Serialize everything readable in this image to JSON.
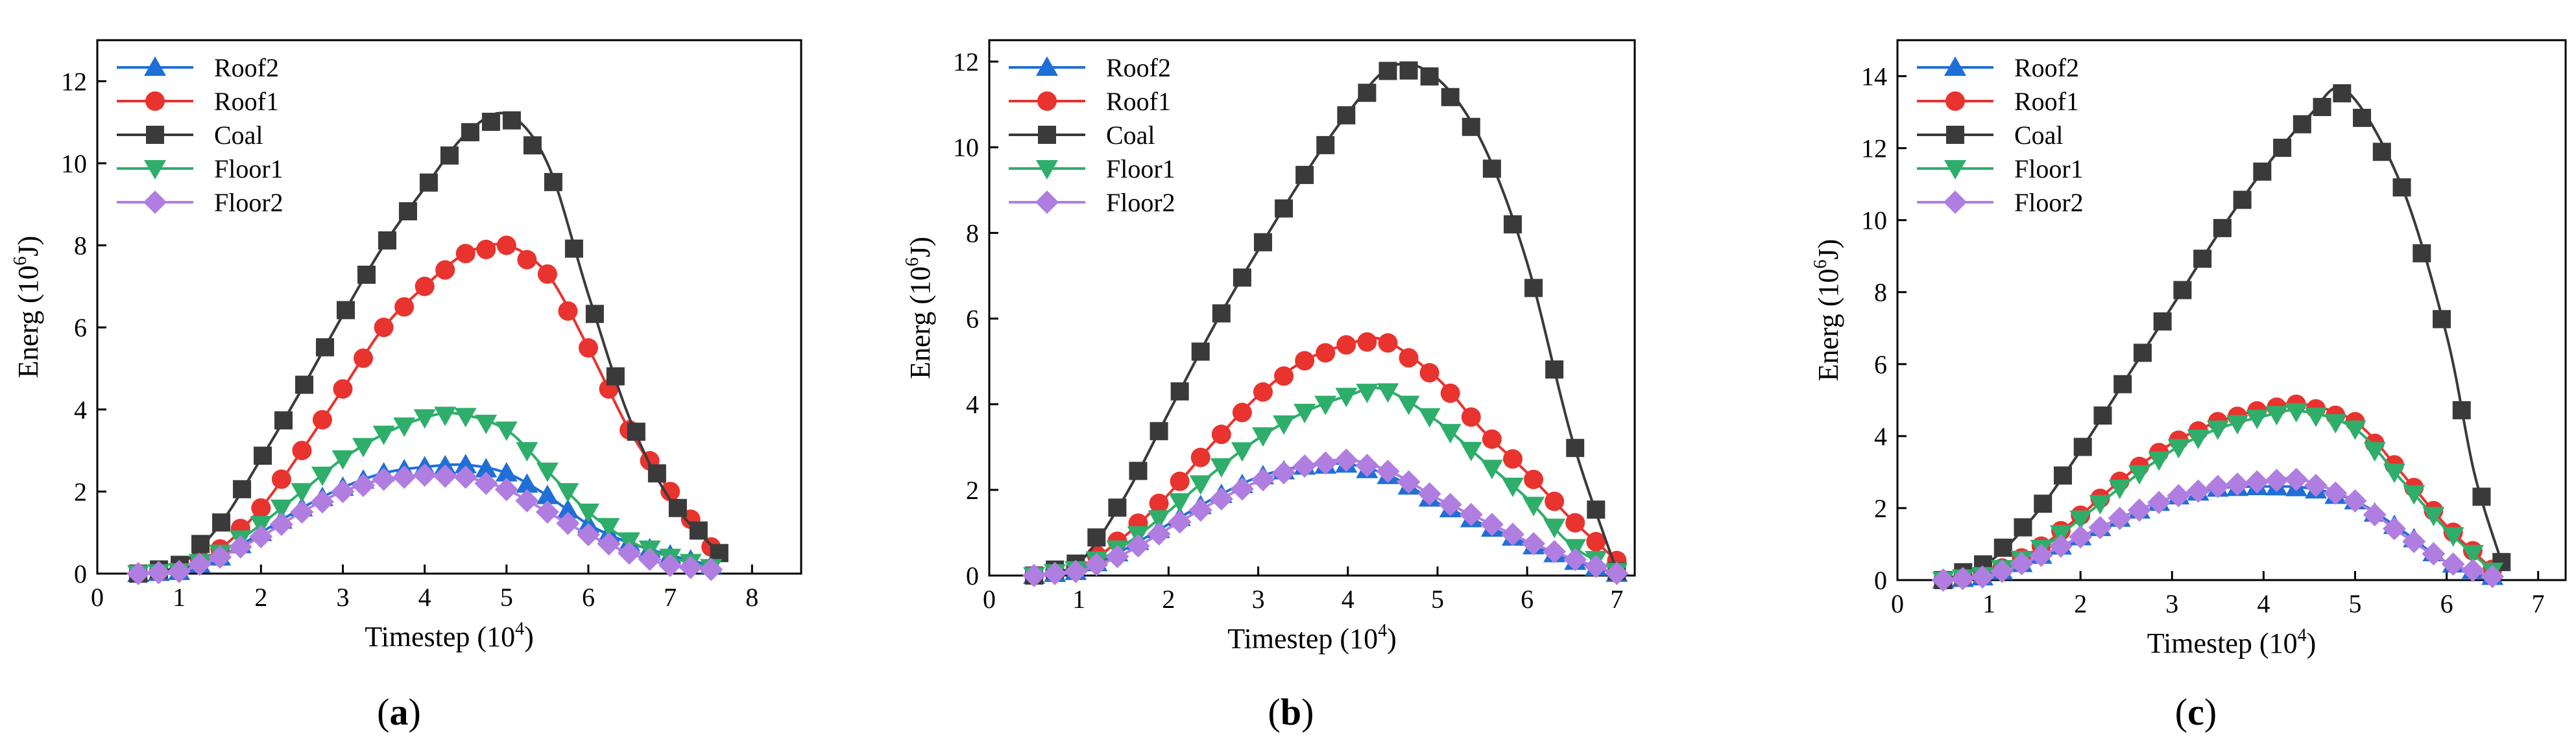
{
  "figure": {
    "panel_tags": [
      "a",
      "b",
      "c"
    ]
  },
  "chart_data": [
    {
      "type": "line",
      "panel": "a",
      "xlabel_main": "Timestep (10",
      "xlabel_exp": "4",
      "xlabel_tail": ")",
      "ylabel_main": "Energ (10",
      "ylabel_exp": "6",
      "ylabel_tail": "J)",
      "xlim": [
        0,
        8.6
      ],
      "ylim": [
        0,
        13
      ],
      "xticks": [
        0,
        1,
        2,
        3,
        4,
        5,
        6,
        7,
        8
      ],
      "yticks": [
        0,
        2,
        4,
        6,
        8,
        10,
        12
      ],
      "legend_position": "top-left",
      "series": [
        {
          "name": "Roof2",
          "color": "#1f6fd6",
          "marker": "triangle-up",
          "points": [
            [
              0.5,
              0
            ],
            [
              1,
              0.05
            ],
            [
              1.5,
              0.4
            ],
            [
              2,
              1.0
            ],
            [
              2.5,
              1.6
            ],
            [
              3,
              2.1
            ],
            [
              3.5,
              2.45
            ],
            [
              4,
              2.6
            ],
            [
              4.5,
              2.65
            ],
            [
              5,
              2.45
            ],
            [
              5.5,
              1.9
            ],
            [
              6,
              1.2
            ],
            [
              6.5,
              0.75
            ],
            [
              7,
              0.45
            ],
            [
              7.5,
              0.2
            ]
          ]
        },
        {
          "name": "Roof1",
          "color": "#e8332e",
          "marker": "circle",
          "points": [
            [
              0.5,
              0
            ],
            [
              1,
              0.1
            ],
            [
              1.5,
              0.6
            ],
            [
              2,
              1.6
            ],
            [
              2.5,
              3.0
            ],
            [
              3,
              4.5
            ],
            [
              3.5,
              6.0
            ],
            [
              4,
              7.0
            ],
            [
              4.5,
              7.8
            ],
            [
              5,
              8.0
            ],
            [
              5.5,
              7.3
            ],
            [
              6,
              5.5
            ],
            [
              6.5,
              3.5
            ],
            [
              7,
              2.0
            ],
            [
              7.5,
              0.65
            ]
          ]
        },
        {
          "name": "Coal",
          "color": "#3a3a3a",
          "marker": "square",
          "points": [
            [
              0.5,
              0
            ],
            [
              1,
              0.2
            ],
            [
              1.5,
              1.2
            ],
            [
              2,
              2.8
            ],
            [
              2.5,
              4.5
            ],
            [
              3,
              6.3
            ],
            [
              3.5,
              8.0
            ],
            [
              4,
              9.4
            ],
            [
              4.5,
              10.7
            ],
            [
              5,
              11.2
            ],
            [
              5.5,
              10.0
            ],
            [
              6,
              6.8
            ],
            [
              6.5,
              3.8
            ],
            [
              7,
              1.8
            ],
            [
              7.6,
              0.5
            ]
          ]
        },
        {
          "name": "Floor1",
          "color": "#2eae6a",
          "marker": "triangle-down",
          "points": [
            [
              0.5,
              0
            ],
            [
              1,
              0.05
            ],
            [
              1.5,
              0.5
            ],
            [
              2,
              1.2
            ],
            [
              2.5,
              2.0
            ],
            [
              3,
              2.8
            ],
            [
              3.5,
              3.4
            ],
            [
              4,
              3.8
            ],
            [
              4.4,
              3.9
            ],
            [
              5,
              3.5
            ],
            [
              5.5,
              2.5
            ],
            [
              6,
              1.5
            ],
            [
              6.5,
              0.8
            ],
            [
              7,
              0.4
            ],
            [
              7.5,
              0.15
            ]
          ]
        },
        {
          "name": "Floor2",
          "color": "#b07ee0",
          "marker": "diamond",
          "points": [
            [
              0.5,
              0
            ],
            [
              1,
              0.05
            ],
            [
              1.5,
              0.4
            ],
            [
              2,
              0.9
            ],
            [
              2.5,
              1.5
            ],
            [
              3,
              2.0
            ],
            [
              3.5,
              2.3
            ],
            [
              4,
              2.4
            ],
            [
              4.5,
              2.35
            ],
            [
              5,
              2.05
            ],
            [
              5.5,
              1.5
            ],
            [
              6,
              0.95
            ],
            [
              6.5,
              0.5
            ],
            [
              7,
              0.2
            ],
            [
              7.5,
              0.1
            ]
          ]
        }
      ]
    },
    {
      "type": "line",
      "panel": "b",
      "xlabel_main": "Timestep (10",
      "xlabel_exp": "4",
      "xlabel_tail": ")",
      "ylabel_main": "Energ (10",
      "ylabel_exp": "6",
      "ylabel_tail": "J)",
      "xlim": [
        0,
        7.2
      ],
      "ylim": [
        0,
        12.5
      ],
      "xticks": [
        0,
        1,
        2,
        3,
        4,
        5,
        6,
        7
      ],
      "yticks": [
        0,
        2,
        4,
        6,
        8,
        10,
        12
      ],
      "legend_position": "top-left",
      "series": [
        {
          "name": "Roof2",
          "color": "#1f6fd6",
          "marker": "triangle-up",
          "points": [
            [
              0.5,
              0
            ],
            [
              1,
              0.1
            ],
            [
              1.5,
              0.6
            ],
            [
              2,
              1.2
            ],
            [
              2.5,
              1.8
            ],
            [
              3,
              2.3
            ],
            [
              3.5,
              2.55
            ],
            [
              4,
              2.6
            ],
            [
              4.5,
              2.3
            ],
            [
              5,
              1.7
            ],
            [
              5.5,
              1.2
            ],
            [
              6,
              0.75
            ],
            [
              6.5,
              0.35
            ],
            [
              7,
              0.05
            ]
          ]
        },
        {
          "name": "Roof1",
          "color": "#e8332e",
          "marker": "circle",
          "points": [
            [
              0.5,
              0
            ],
            [
              1,
              0.2
            ],
            [
              1.5,
              0.9
            ],
            [
              2,
              1.9
            ],
            [
              2.5,
              3.1
            ],
            [
              3,
              4.2
            ],
            [
              3.5,
              5.0
            ],
            [
              4,
              5.4
            ],
            [
              4.4,
              5.5
            ],
            [
              5,
              4.6
            ],
            [
              5.5,
              3.4
            ],
            [
              6,
              2.4
            ],
            [
              6.5,
              1.3
            ],
            [
              7,
              0.35
            ]
          ]
        },
        {
          "name": "Coal",
          "color": "#3a3a3a",
          "marker": "square",
          "points": [
            [
              0.5,
              0
            ],
            [
              1,
              0.3
            ],
            [
              1.5,
              1.8
            ],
            [
              2,
              3.8
            ],
            [
              2.5,
              5.8
            ],
            [
              3,
              7.6
            ],
            [
              3.5,
              9.3
            ],
            [
              4,
              10.8
            ],
            [
              4.5,
              11.9
            ],
            [
              5,
              11.6
            ],
            [
              5.5,
              10.1
            ],
            [
              6,
              7.3
            ],
            [
              6.5,
              3.2
            ],
            [
              7,
              0.1
            ]
          ]
        },
        {
          "name": "Floor1",
          "color": "#2eae6a",
          "marker": "triangle-down",
          "points": [
            [
              0.5,
              0
            ],
            [
              1,
              0.15
            ],
            [
              1.5,
              0.7
            ],
            [
              2,
              1.5
            ],
            [
              2.5,
              2.4
            ],
            [
              3,
              3.2
            ],
            [
              3.5,
              3.8
            ],
            [
              4,
              4.2
            ],
            [
              4.4,
              4.35
            ],
            [
              5,
              3.6
            ],
            [
              5.5,
              2.7
            ],
            [
              6,
              1.8
            ],
            [
              6.5,
              0.7
            ],
            [
              7,
              0.1
            ]
          ]
        },
        {
          "name": "Floor2",
          "color": "#b07ee0",
          "marker": "diamond",
          "points": [
            [
              0.5,
              0
            ],
            [
              1,
              0.1
            ],
            [
              1.5,
              0.5
            ],
            [
              2,
              1.1
            ],
            [
              2.5,
              1.7
            ],
            [
              3,
              2.2
            ],
            [
              3.5,
              2.55
            ],
            [
              4,
              2.7
            ],
            [
              4.5,
              2.4
            ],
            [
              5,
              1.8
            ],
            [
              5.5,
              1.3
            ],
            [
              6,
              0.8
            ],
            [
              6.5,
              0.4
            ],
            [
              7,
              0.05
            ]
          ]
        }
      ]
    },
    {
      "type": "line",
      "panel": "c",
      "xlabel_main": "Timestep (10",
      "xlabel_exp": "4",
      "xlabel_tail": ")",
      "ylabel_main": "Energ (10",
      "ylabel_exp": "6",
      "ylabel_tail": "J)",
      "xlim": [
        0,
        7.3
      ],
      "ylim": [
        0,
        15
      ],
      "xticks": [
        0,
        1,
        2,
        3,
        4,
        5,
        6,
        7
      ],
      "yticks": [
        0,
        2,
        4,
        6,
        8,
        10,
        12,
        14
      ],
      "legend_position": "top-left",
      "series": [
        {
          "name": "Roof2",
          "color": "#1f6fd6",
          "marker": "triangle-up",
          "points": [
            [
              0.5,
              0
            ],
            [
              1,
              0.1
            ],
            [
              1.5,
              0.6
            ],
            [
              2,
              1.2
            ],
            [
              2.5,
              1.8
            ],
            [
              3,
              2.3
            ],
            [
              3.5,
              2.55
            ],
            [
              4,
              2.6
            ],
            [
              4.5,
              2.55
            ],
            [
              5,
              2.2
            ],
            [
              5.5,
              1.4
            ],
            [
              6,
              0.5
            ],
            [
              6.5,
              0.1
            ]
          ]
        },
        {
          "name": "Roof1",
          "color": "#e8332e",
          "marker": "circle",
          "points": [
            [
              0.5,
              0
            ],
            [
              1,
              0.15
            ],
            [
              1.5,
              0.8
            ],
            [
              2,
              1.8
            ],
            [
              2.5,
              2.9
            ],
            [
              3,
              3.8
            ],
            [
              3.5,
              4.4
            ],
            [
              4,
              4.75
            ],
            [
              4.4,
              4.9
            ],
            [
              5,
              4.4
            ],
            [
              5.5,
              3.0
            ],
            [
              6,
              1.5
            ],
            [
              6.5,
              0.3
            ]
          ]
        },
        {
          "name": "Coal",
          "color": "#3a3a3a",
          "marker": "square",
          "points": [
            [
              0.5,
              0
            ],
            [
              1,
              0.5
            ],
            [
              1.5,
              1.8
            ],
            [
              2,
              3.6
            ],
            [
              2.5,
              5.6
            ],
            [
              3,
              7.6
            ],
            [
              3.5,
              9.6
            ],
            [
              4,
              11.4
            ],
            [
              4.5,
              12.9
            ],
            [
              4.9,
              13.6
            ],
            [
              5.5,
              11.0
            ],
            [
              6,
              6.8
            ],
            [
              6.3,
              3.0
            ],
            [
              6.6,
              0.5
            ]
          ]
        },
        {
          "name": "Floor1",
          "color": "#2eae6a",
          "marker": "triangle-down",
          "points": [
            [
              0.5,
              0
            ],
            [
              1,
              0.15
            ],
            [
              1.5,
              0.75
            ],
            [
              2,
              1.7
            ],
            [
              2.5,
              2.7
            ],
            [
              3,
              3.6
            ],
            [
              3.5,
              4.2
            ],
            [
              4,
              4.55
            ],
            [
              4.4,
              4.7
            ],
            [
              5,
              4.2
            ],
            [
              5.5,
              2.8
            ],
            [
              6,
              1.4
            ],
            [
              6.5,
              0.25
            ]
          ]
        },
        {
          "name": "Floor2",
          "color": "#b07ee0",
          "marker": "diamond",
          "points": [
            [
              0.5,
              0
            ],
            [
              1,
              0.1
            ],
            [
              1.5,
              0.6
            ],
            [
              2,
              1.2
            ],
            [
              2.5,
              1.8
            ],
            [
              3,
              2.3
            ],
            [
              3.5,
              2.6
            ],
            [
              4,
              2.75
            ],
            [
              4.4,
              2.8
            ],
            [
              5,
              2.2
            ],
            [
              5.5,
              1.3
            ],
            [
              6,
              0.5
            ],
            [
              6.5,
              0.1
            ]
          ]
        }
      ]
    }
  ]
}
